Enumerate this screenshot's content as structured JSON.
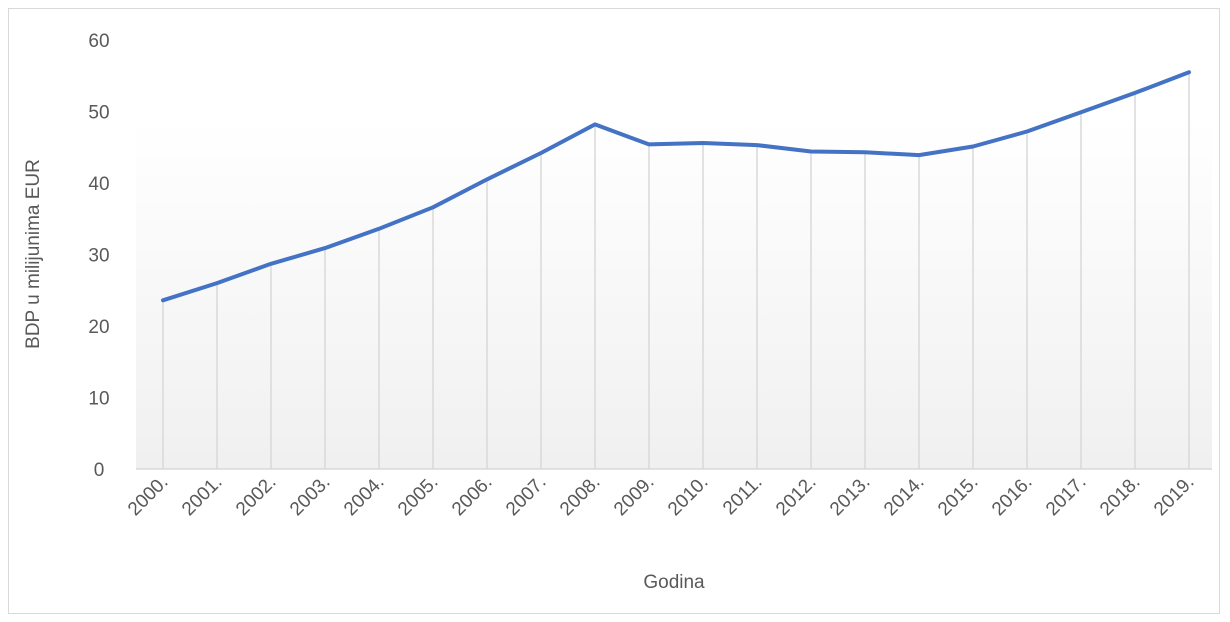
{
  "chart_data": {
    "type": "line",
    "title": "",
    "xlabel": "Godina",
    "ylabel": "BDP u milijunima EUR",
    "ylim": [
      0,
      60
    ],
    "yticks": [
      "0",
      "10",
      "20",
      "30",
      "40",
      "50",
      "60"
    ],
    "grid": "vertical drop lines at each category",
    "categories": [
      "2000.",
      "2001.",
      "2002.",
      "2003.",
      "2004.",
      "2005.",
      "2006.",
      "2007.",
      "2008.",
      "2009.",
      "2010.",
      "2011.",
      "2012.",
      "2013.",
      "2014.",
      "2015.",
      "2016.",
      "2017.",
      "2018.",
      "2019."
    ],
    "series": [
      {
        "color": "#4472c4",
        "values": [
          23.6,
          26.0,
          28.7,
          30.9,
          33.6,
          36.6,
          40.5,
          44.2,
          48.2,
          45.4,
          45.6,
          45.3,
          44.4,
          44.3,
          43.9,
          45.1,
          47.2,
          49.9,
          52.6,
          55.5
        ]
      }
    ]
  }
}
